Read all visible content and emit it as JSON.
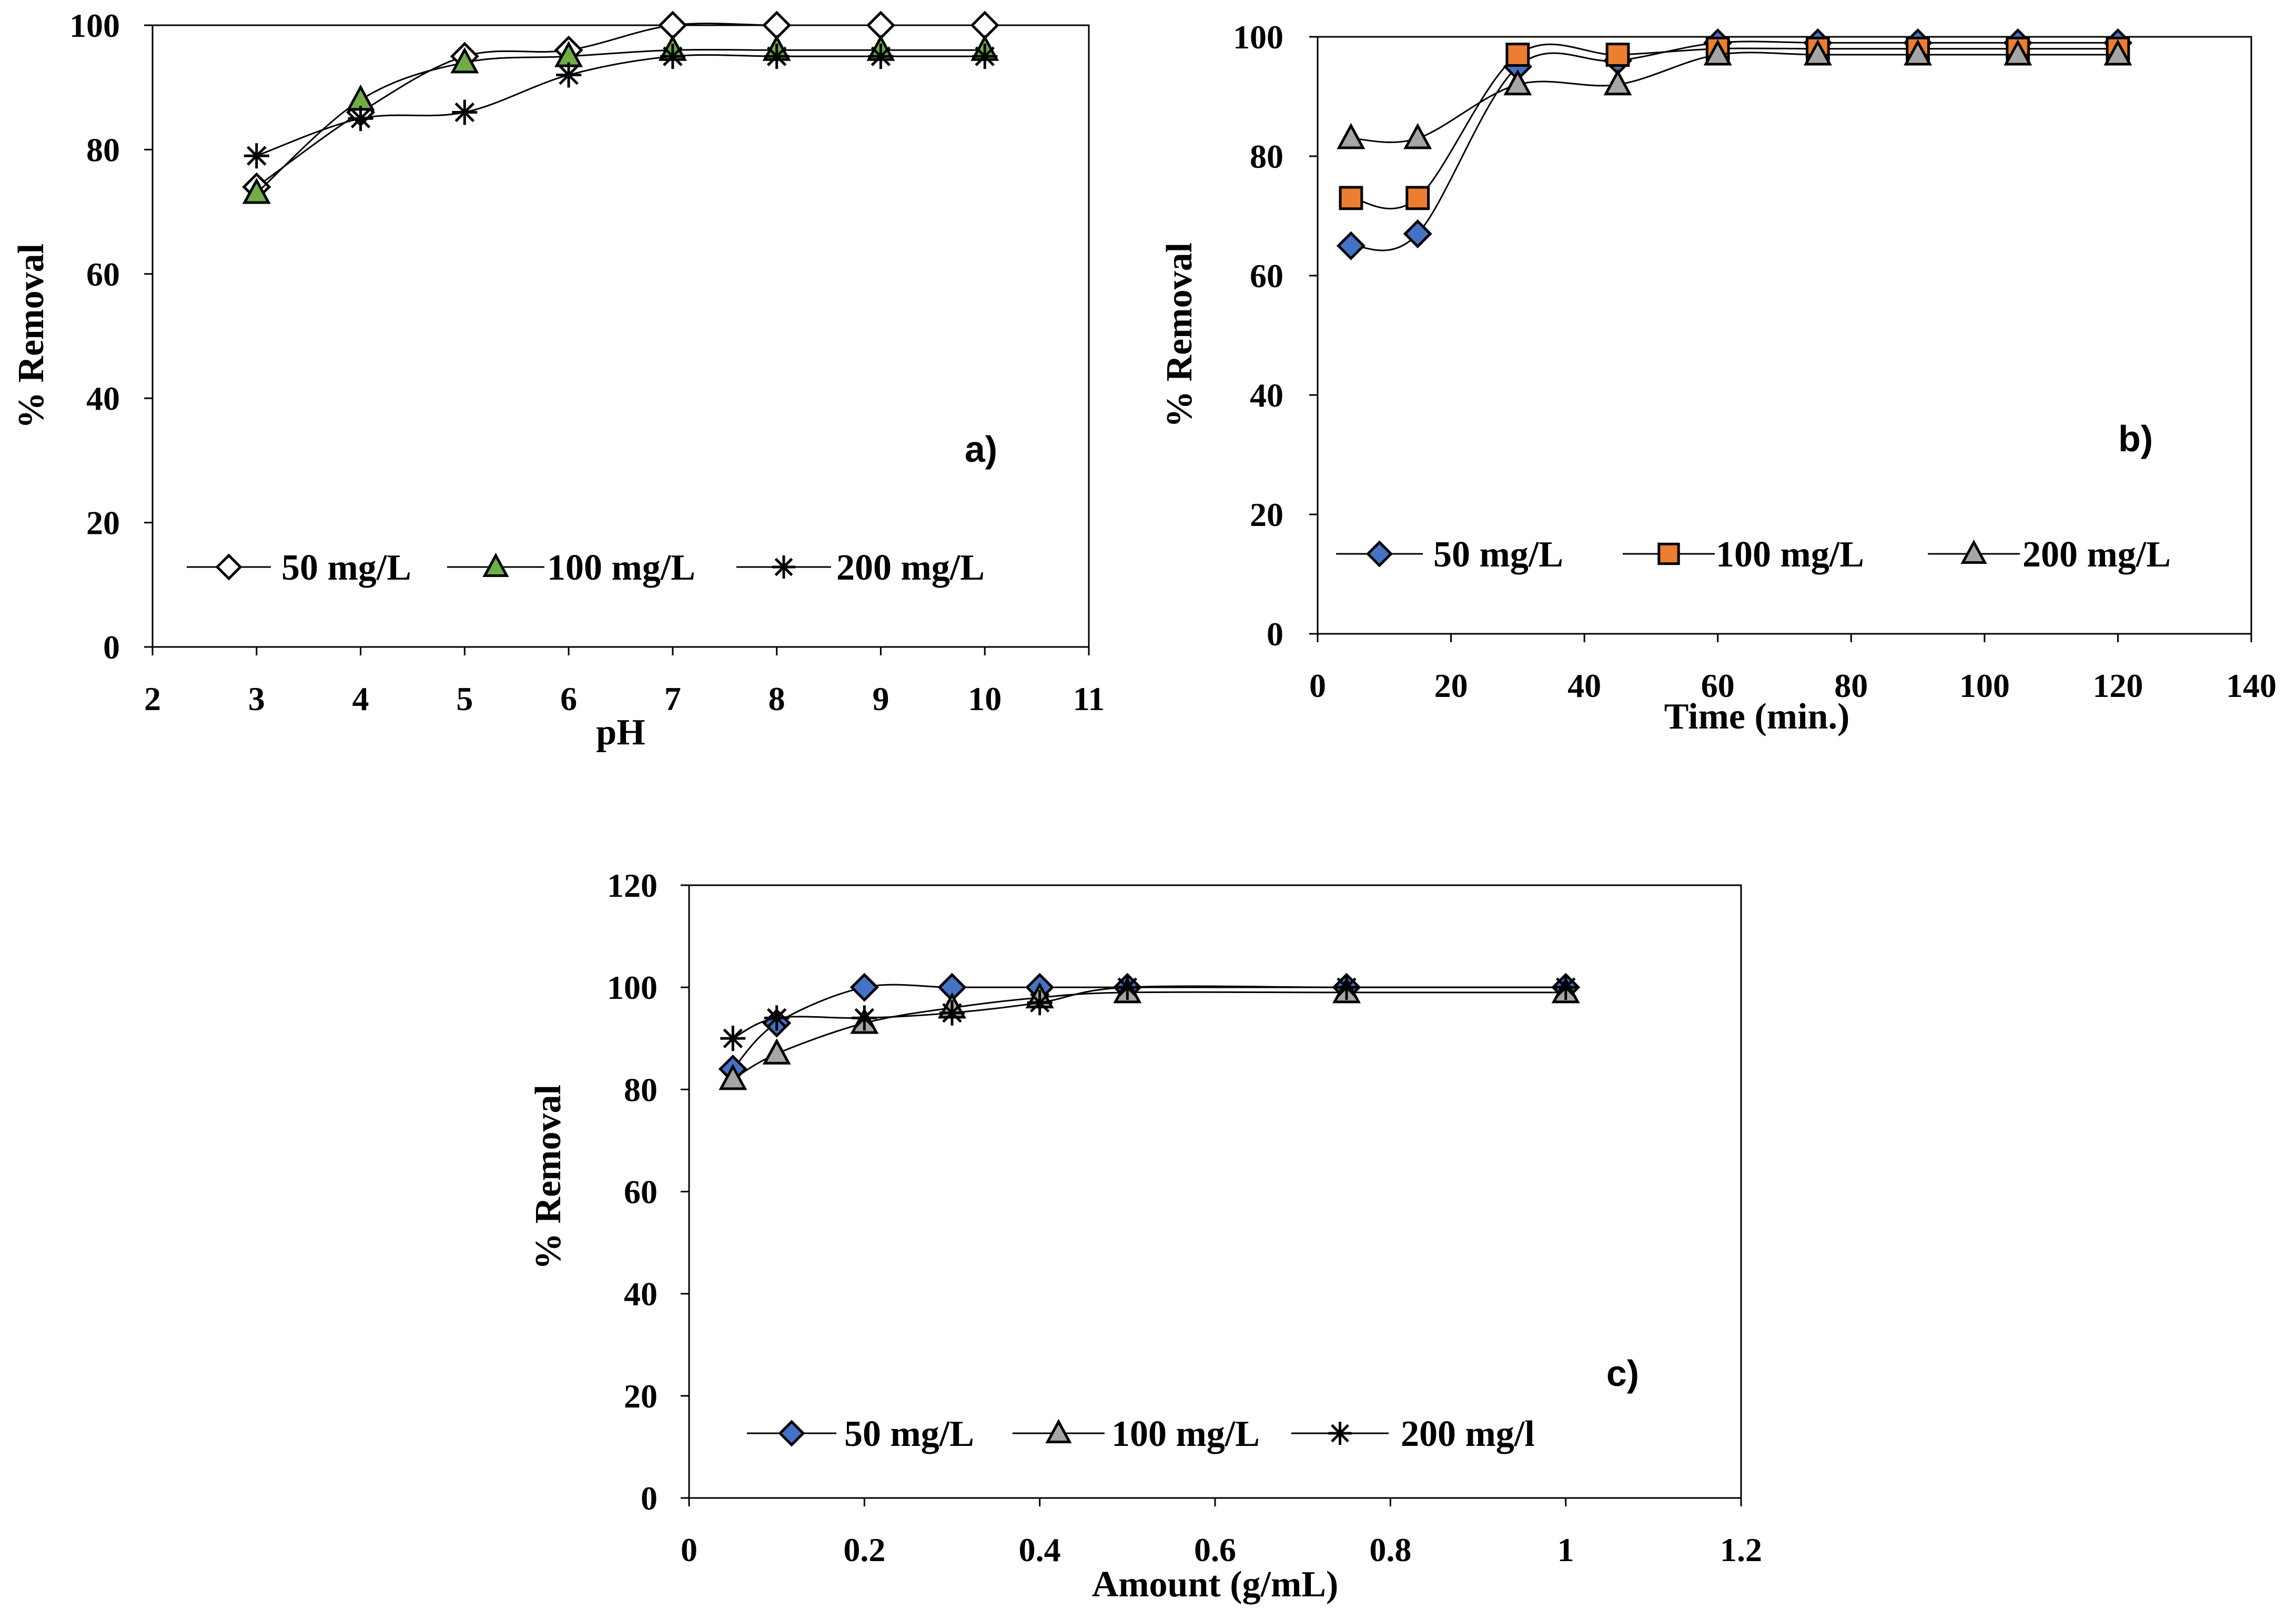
{
  "chart_data": [
    {
      "type": "line",
      "panel_label": "a)",
      "xlabel": "pH",
      "ylabel": "% Removal",
      "xlim": [
        2,
        11
      ],
      "ylim": [
        0,
        100
      ],
      "xticks": [
        "2",
        "3",
        "4",
        "5",
        "6",
        "7",
        "8",
        "9",
        "10",
        "11"
      ],
      "yticks": [
        "0",
        "20",
        "40",
        "60",
        "80",
        "100"
      ],
      "legend_position": "bottom",
      "x": [
        3,
        4,
        5,
        6,
        7,
        8,
        9,
        10
      ],
      "series": [
        {
          "name": "50 mg/L",
          "marker": "diamond-open",
          "fill": "#ffffff",
          "values": [
            74,
            86,
            95,
            96,
            100,
            100,
            100,
            100
          ]
        },
        {
          "name": "100 mg/L",
          "marker": "triangle",
          "fill": "#70ad47",
          "values": [
            73,
            88,
            94,
            95,
            96,
            96,
            96,
            96
          ]
        },
        {
          "name": "200 mg/L",
          "marker": "asterisk",
          "fill": "#000000",
          "values": [
            79,
            85,
            86,
            92,
            95,
            95,
            95,
            95
          ]
        }
      ]
    },
    {
      "type": "line",
      "panel_label": "b)",
      "xlabel": "Time (min.)",
      "ylabel": "% Removal",
      "xlim": [
        0,
        140
      ],
      "ylim": [
        0,
        100
      ],
      "xticks": [
        "0",
        "20",
        "40",
        "60",
        "80",
        "100",
        "120",
        "140"
      ],
      "yticks": [
        "0",
        "20",
        "40",
        "60",
        "80",
        "100"
      ],
      "legend_position": "bottom",
      "x": [
        5,
        15,
        30,
        45,
        60,
        75,
        90,
        105,
        120
      ],
      "series": [
        {
          "name": "50 mg/L",
          "marker": "diamond",
          "fill": "#4472c4",
          "values": [
            65,
            67,
            95,
            96,
            99,
            99,
            99,
            99,
            99
          ]
        },
        {
          "name": "100 mg/L",
          "marker": "square",
          "fill": "#ed7d31",
          "values": [
            73,
            73,
            97,
            97,
            98,
            98,
            98,
            98,
            98
          ]
        },
        {
          "name": "200 mg/L",
          "marker": "triangle",
          "fill": "#a5a5a5",
          "values": [
            83,
            83,
            92,
            92,
            97,
            97,
            97,
            97,
            97
          ]
        }
      ]
    },
    {
      "type": "line",
      "panel_label": "c)",
      "xlabel": "Amount  (g/mL)",
      "ylabel": "%  Removal",
      "xlim": [
        0,
        1.2
      ],
      "ylim": [
        0,
        120
      ],
      "xticks": [
        "0",
        "0.2",
        "0.4",
        "0.6",
        "0.8",
        "1",
        "1.2"
      ],
      "yticks": [
        "0",
        "20",
        "40",
        "60",
        "80",
        "100",
        "120"
      ],
      "legend_position": "bottom",
      "x": [
        0.05,
        0.1,
        0.2,
        0.3,
        0.4,
        0.5,
        0.75,
        1.0
      ],
      "series": [
        {
          "name": "50 mg/L",
          "marker": "diamond",
          "fill": "#4472c4",
          "values": [
            84,
            93,
            100,
            100,
            100,
            100,
            100,
            100
          ]
        },
        {
          "name": "100 mg/L",
          "marker": "triangle",
          "fill": "#a5a5a5",
          "values": [
            82,
            87,
            93,
            96,
            98,
            99,
            99,
            99
          ]
        },
        {
          "name": "200 mg/l",
          "marker": "asterisk",
          "fill": "#000000",
          "values": [
            90,
            94,
            94,
            95,
            97,
            100,
            100,
            100
          ]
        }
      ]
    }
  ]
}
